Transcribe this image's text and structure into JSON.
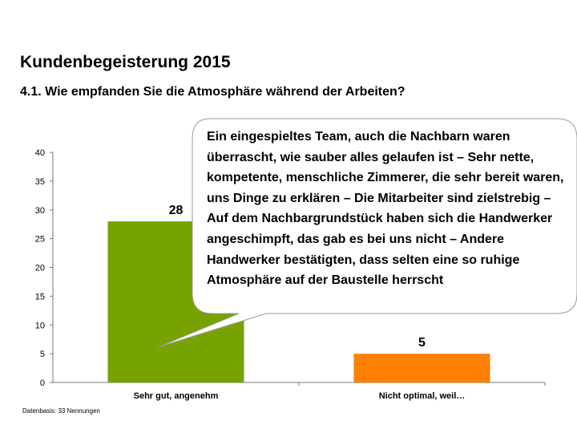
{
  "title": "Kundenbegeisterung 2015",
  "subtitle": "4.1. Wie empfanden Sie die Atmosphäre während der Arbeiten?",
  "callout": {
    "text": "Ein eingespieltes Team, auch die Nachbarn waren überrascht, wie sauber alles gelaufen ist – Sehr nette, kompetente, menschliche Zimmerer, die sehr bereit waren, uns Dinge zu erklären – Die Mitarbeiter sind zielstrebig – Auf dem Nachbargrundstück haben sich die Handwerker angeschimpft, das gab es bei uns nicht – Andere Handwerker bestätigten, dass selten eine so ruhige Atmosphäre auf der Baustelle herrscht"
  },
  "footnote": "Datenbasis: 33 Nennungen",
  "chart_data": {
    "type": "bar",
    "title": "Kundenbegeisterung 2015",
    "subtitle": "4.1. Wie empfanden Sie die Atmosphäre während der Arbeiten?",
    "categories": [
      "Sehr gut, angenehm",
      "Nicht optimal, weil…"
    ],
    "values": [
      28,
      5
    ],
    "colors": [
      "#77a300",
      "#ff7f00"
    ],
    "yticks": [
      0,
      5,
      10,
      15,
      20,
      25,
      30,
      35,
      40
    ],
    "ylim": [
      0,
      40
    ],
    "xlabel": "",
    "ylabel": "",
    "grid": false,
    "data_labels": true
  }
}
